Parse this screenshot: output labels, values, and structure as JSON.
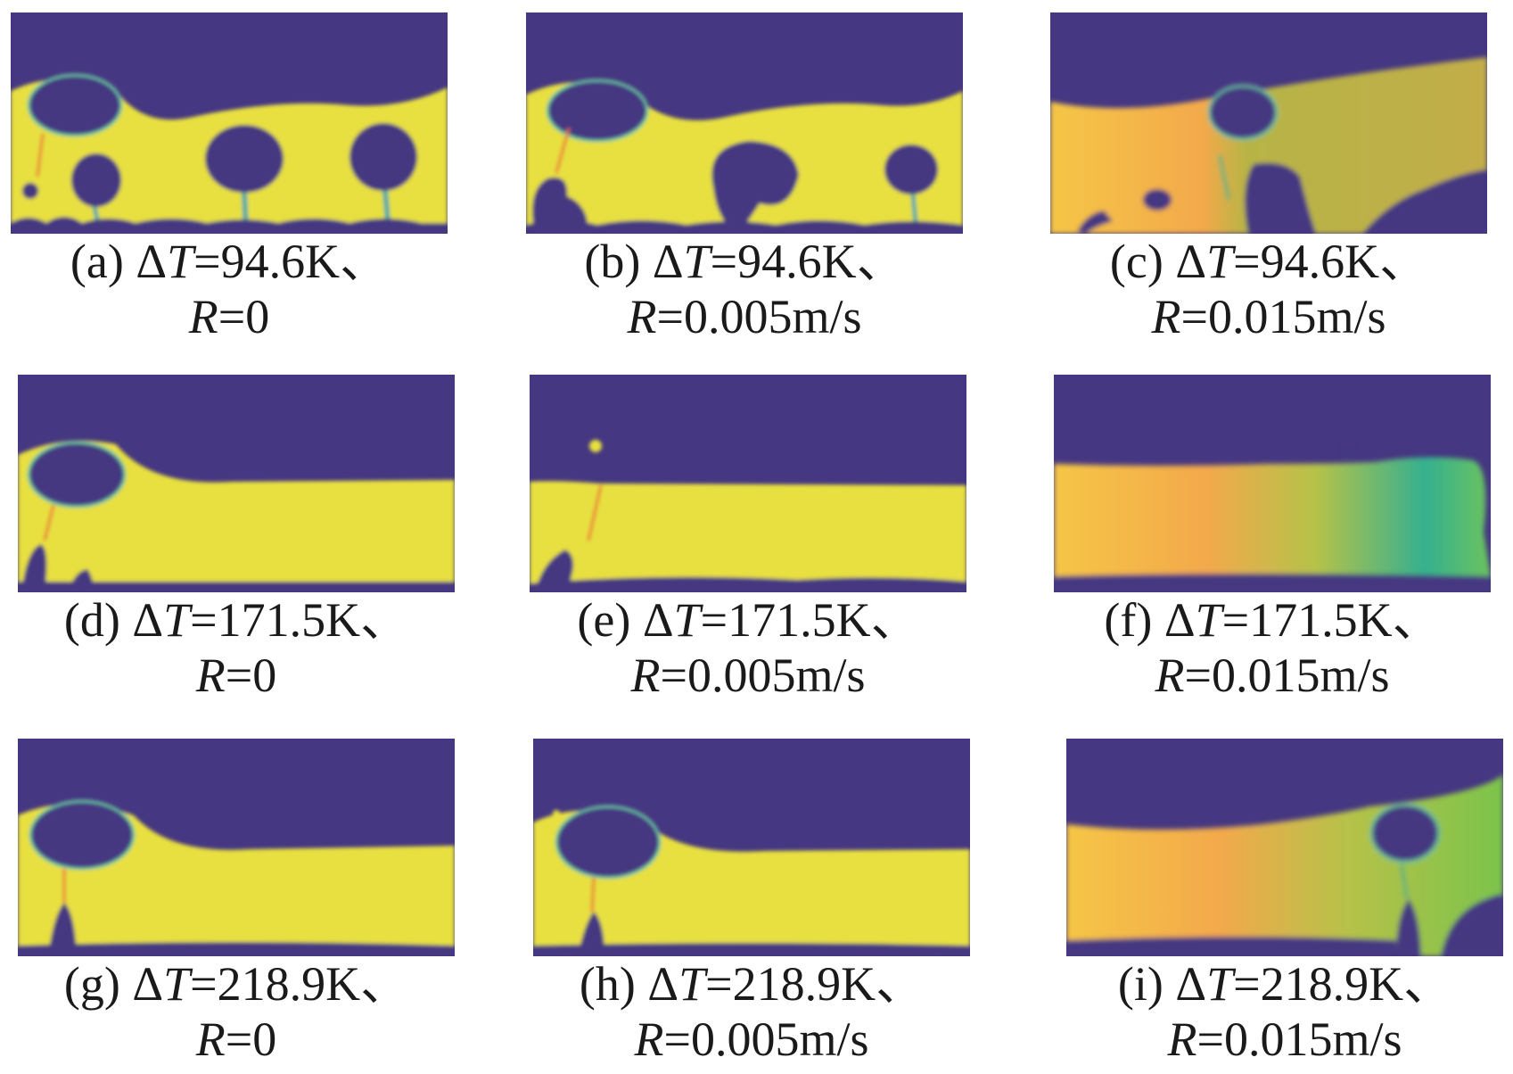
{
  "figure": {
    "colors": {
      "vapor": "#453781",
      "liquid": "#e8e040",
      "warm": "#f0a84a",
      "mid": "#b7b445",
      "green": "#7cc34b",
      "teal": "#35b08f"
    },
    "panels": [
      {
        "id": "a",
        "label": "(a)",
        "dt": "=94.6K、",
        "rlabel": "=0"
      },
      {
        "id": "b",
        "label": "(b)",
        "dt": "=94.6K、",
        "rlabel": "=0.005m/s"
      },
      {
        "id": "c",
        "label": "(c)",
        "dt": "=94.6K、",
        "rlabel": "=0.015m/s"
      },
      {
        "id": "d",
        "label": "(d)",
        "dt": "=171.5K、",
        "rlabel": "=0"
      },
      {
        "id": "e",
        "label": "(e)",
        "dt": "=171.5K、",
        "rlabel": "=0.005m/s"
      },
      {
        "id": "f",
        "label": "(f)",
        "dt": "=171.5K、",
        "rlabel": "=0.015m/s"
      },
      {
        "id": "g",
        "label": "(g)",
        "dt": "=218.9K、",
        "rlabel": "=0"
      },
      {
        "id": "h",
        "label": "(h)",
        "dt": "=218.9K、",
        "rlabel": "=0.005m/s"
      },
      {
        "id": "i",
        "label": "(i)",
        "dt": "=218.9K、",
        "rlabel": "=0.015m/s"
      }
    ],
    "symbols": {
      "delta": "Δ",
      "t": "T",
      "r": "R"
    }
  }
}
